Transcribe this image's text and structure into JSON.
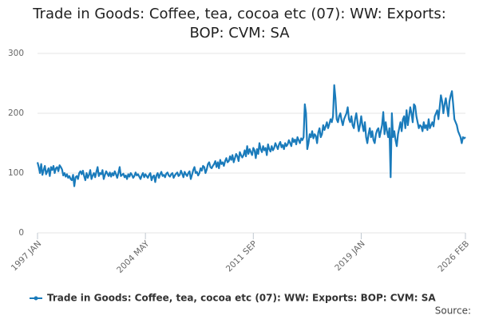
{
  "chart_data": {
    "type": "line",
    "title": "Trade in Goods: Coffee, tea, cocoa etc (07): WW: Exports: BOP: CVM: SA",
    "source": "Source:",
    "categories": [
      "1997 JAN",
      null,
      null,
      null,
      null,
      null,
      null,
      null,
      null,
      null,
      null,
      null,
      null,
      null,
      null,
      null,
      null,
      null,
      null,
      null,
      null,
      null,
      null,
      null,
      null,
      null,
      null,
      null,
      null,
      null,
      null,
      null,
      null,
      null,
      null,
      null,
      null,
      null,
      null,
      null,
      null,
      null,
      null,
      null,
      null,
      null,
      null,
      null,
      null,
      null,
      null,
      null,
      null,
      null,
      null,
      null,
      null,
      null,
      null,
      null,
      null,
      null,
      null,
      null,
      null,
      null,
      null,
      null,
      null,
      null,
      null,
      null,
      null,
      null,
      null,
      null,
      null,
      null,
      null,
      null,
      null,
      null,
      null,
      null,
      null,
      null,
      null,
      null,
      "2004 MAY",
      null,
      null,
      null,
      null,
      null,
      null,
      null,
      null,
      null,
      null,
      null,
      null,
      null,
      null,
      null,
      null,
      null,
      null,
      null,
      null,
      null,
      null,
      null,
      null,
      null,
      null,
      null,
      null,
      null,
      null,
      null,
      null,
      null,
      null,
      null,
      null,
      null,
      null,
      null,
      null,
      null,
      null,
      null,
      null,
      null,
      null,
      null,
      null,
      null,
      null,
      null,
      null,
      null,
      null,
      null,
      null,
      null,
      null,
      null,
      null,
      null,
      null,
      null,
      null,
      null,
      null,
      null,
      null,
      null,
      null,
      null,
      null,
      null,
      null,
      null,
      null,
      null,
      null,
      null,
      null,
      null,
      null,
      null,
      null,
      null,
      null,
      null,
      "2011 SEP",
      null,
      null,
      null,
      null,
      null,
      null,
      null,
      null,
      null,
      null,
      null,
      null,
      null,
      null,
      null,
      null,
      null,
      null,
      null,
      null,
      null,
      null,
      null,
      null,
      null,
      null,
      null,
      null,
      null,
      null,
      null,
      null,
      null,
      null,
      null,
      null,
      null,
      null,
      null,
      null,
      null,
      null,
      null,
      null,
      null,
      null,
      null,
      null,
      null,
      null,
      null,
      null,
      null,
      null,
      null,
      null,
      null,
      null,
      null,
      null,
      null,
      null,
      null,
      null,
      null,
      null,
      null,
      null,
      null,
      null,
      null,
      null,
      null,
      null,
      null,
      null,
      null,
      null,
      null,
      null,
      null,
      null,
      null,
      null,
      null,
      null,
      null,
      "2019 JAN",
      null,
      null,
      null,
      null,
      null,
      null,
      null,
      null,
      null,
      null,
      null,
      null,
      null,
      null,
      null,
      null,
      null,
      null,
      null,
      null,
      null,
      null,
      null,
      null,
      null,
      null,
      null,
      null,
      null,
      null,
      null,
      null,
      null,
      null,
      null,
      null,
      null,
      null,
      null,
      null,
      null,
      null,
      null,
      null,
      null,
      null,
      null,
      null,
      null,
      null,
      null,
      null,
      null,
      null,
      null,
      null,
      null,
      null,
      null,
      null,
      null,
      null,
      null,
      null,
      null,
      null,
      null,
      null,
      null,
      null,
      null,
      null,
      null,
      null,
      null,
      null,
      null,
      null,
      null,
      null,
      null,
      null,
      null,
      null,
      "2026 FEB"
    ],
    "series": [
      {
        "name": "Trade in Goods: Coffee, tea, cocoa etc (07): WW: Exports: BOP: CVM: SA",
        "color": "#1a7bbb",
        "values": [
          118,
          110,
          100,
          115,
          97,
          105,
          112,
          98,
          103,
          108,
          95,
          110,
          105,
          112,
          100,
          108,
          110,
          103,
          113,
          110,
          106,
          96,
          100,
          94,
          98,
          92,
          95,
          90,
          88,
          97,
          78,
          93,
          95,
          90,
          100,
          103,
          98,
          104,
          95,
          88,
          100,
          92,
          97,
          105,
          90,
          96,
          100,
          93,
          102,
          110,
          95,
          100,
          98,
          105,
          90,
          97,
          103,
          99,
          95,
          101,
          94,
          100,
          96,
          103,
          98,
          92,
          100,
          110,
          95,
          97,
          99,
          93,
          96,
          90,
          98,
          94,
          100,
          97,
          92,
          95,
          101,
          96,
          98,
          94,
          90,
          96,
          100,
          93,
          98,
          95,
          92,
          97,
          100,
          88,
          94,
          96,
          85,
          96,
          100,
          92,
          98,
          102,
          95,
          97,
          93,
          99,
          101,
          96,
          94,
          98,
          100,
          92,
          96,
          99,
          101,
          95,
          97,
          104,
          99,
          93,
          102,
          98,
          95,
          100,
          103,
          90,
          97,
          105,
          110,
          100,
          102,
          96,
          100,
          108,
          104,
          112,
          110,
          100,
          106,
          115,
          118,
          110,
          108,
          112,
          115,
          120,
          110,
          118,
          108,
          122,
          115,
          118,
          112,
          120,
          125,
          118,
          120,
          128,
          122,
          130,
          118,
          125,
          132,
          128,
          120,
          135,
          130,
          126,
          130,
          138,
          128,
          145,
          132,
          140,
          135,
          130,
          142,
          138,
          125,
          140,
          132,
          150,
          140,
          135,
          145,
          138,
          142,
          130,
          148,
          140,
          136,
          145,
          138,
          142,
          150,
          145,
          140,
          148,
          152,
          143,
          147,
          140,
          150,
          145,
          148,
          155,
          150,
          145,
          158,
          152,
          156,
          148,
          160,
          155,
          150,
          158,
          155,
          160,
          215,
          200,
          140,
          150,
          165,
          160,
          170,
          158,
          165,
          162,
          150,
          168,
          175,
          160,
          165,
          180,
          172,
          178,
          185,
          175,
          182,
          190,
          185,
          195,
          247,
          225,
          190,
          185,
          195,
          200,
          188,
          180,
          190,
          195,
          200,
          210,
          190,
          185,
          195,
          180,
          175,
          190,
          200,
          185,
          170,
          180,
          195,
          180,
          170,
          185,
          160,
          150,
          165,
          175,
          160,
          170,
          155,
          150,
          165,
          172,
          175,
          160,
          170,
          180,
          202,
          165,
          185,
          170,
          160,
          175,
          93,
          200,
          160,
          170,
          155,
          145,
          165,
          175,
          185,
          170,
          190,
          195,
          175,
          205,
          180,
          195,
          210,
          200,
          185,
          215,
          212,
          195,
          185,
          175,
          180,
          178,
          170,
          185,
          175,
          180,
          172,
          190,
          175,
          180,
          185,
          178,
          195,
          200,
          205,
          190,
          210,
          230,
          220,
          200,
          215,
          225,
          210,
          195,
          220,
          230,
          237,
          215,
          190,
          185,
          180,
          170,
          165,
          160,
          150,
          160,
          158,
          160
        ]
      }
    ],
    "ylim": [
      0,
      300
    ],
    "yticks": [
      0,
      100,
      200,
      300
    ],
    "grid": true
  }
}
